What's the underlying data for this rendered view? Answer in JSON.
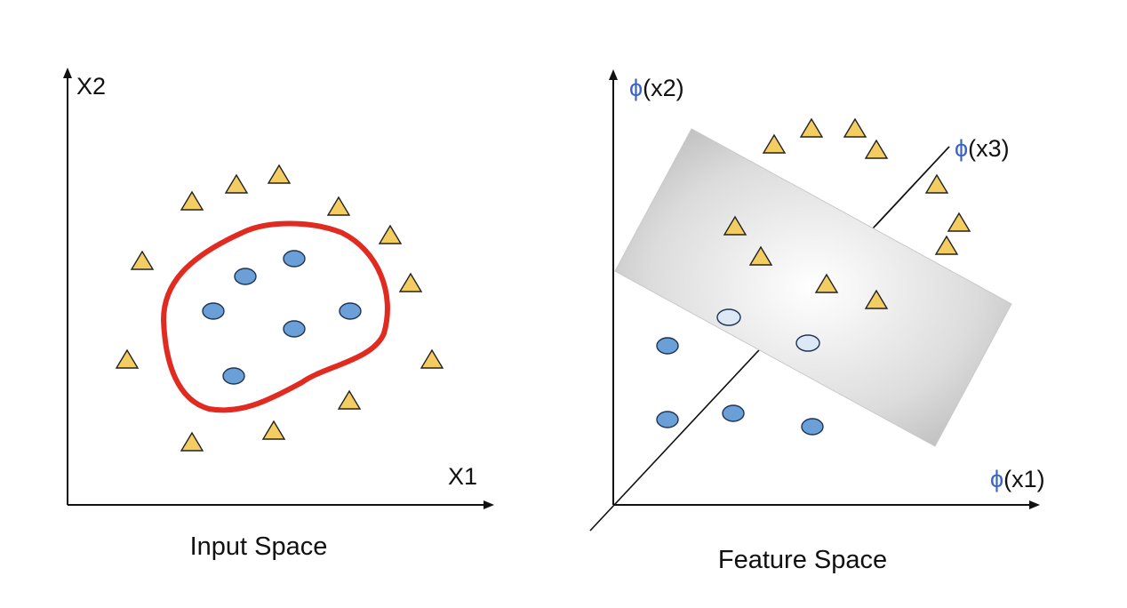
{
  "input_space": {
    "caption": "Input Space",
    "x_axis_label": "X1",
    "y_axis_label": "X2"
  },
  "feature_space": {
    "caption": "Feature Space",
    "x_axis": {
      "phi": "ϕ",
      "label": "(x1)"
    },
    "y_axis": {
      "phi": "ϕ",
      "label": "(x2)"
    },
    "z_axis": {
      "phi": "ϕ",
      "label": "(x3)"
    }
  },
  "colors": {
    "triangle_fill": "#f4cd62",
    "circle_fill": "#6a9fd8",
    "circle_fill_light": "#dce8f6",
    "boundary": "#e12a20",
    "axis": "#111111",
    "phi_symbol": "#3b63c6"
  },
  "icons": {
    "class_a_marker": "triangle",
    "class_b_marker": "circle"
  }
}
